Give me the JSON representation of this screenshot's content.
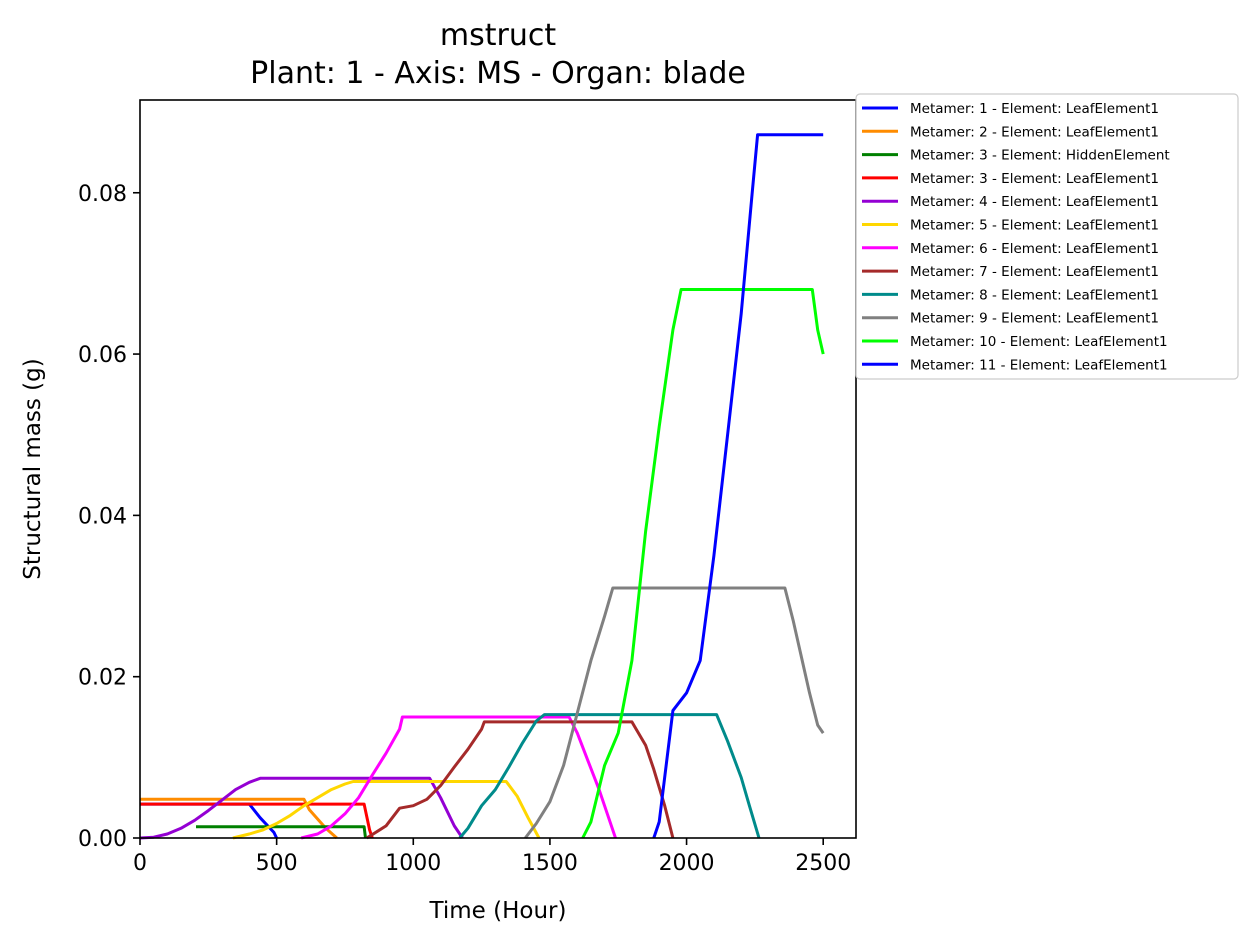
{
  "chart_data": {
    "type": "line",
    "title": "mstruct",
    "subtitle": "Plant: 1 - Axis: MS - Organ: blade",
    "xlabel": "Time (Hour)",
    "ylabel": "Structural mass (g)",
    "xlim": [
      0,
      2620
    ],
    "ylim": [
      0,
      0.0915
    ],
    "xticks": [
      0,
      500,
      1000,
      1500,
      2000,
      2500
    ],
    "xtick_labels": [
      "0",
      "500",
      "1000",
      "1500",
      "2000",
      "2500"
    ],
    "yticks": [
      0,
      0.02,
      0.04,
      0.06,
      0.08
    ],
    "ytick_labels": [
      "0.00",
      "0.02",
      "0.04",
      "0.06",
      "0.08"
    ],
    "grid": false,
    "legend_position": "outside-top-right",
    "series": [
      {
        "name": "Metamer: 1 - Element: LeafElement1",
        "color": "#0000ff",
        "x": [
          0,
          400,
          440,
          490,
          500
        ],
        "y": [
          0.0042,
          0.0042,
          0.0025,
          0.0007,
          0.0
        ]
      },
      {
        "name": "Metamer: 2 - Element: LeafElement1",
        "color": "#ff8c00",
        "x": [
          0,
          600,
          620,
          680,
          720
        ],
        "y": [
          0.0048,
          0.0048,
          0.0035,
          0.0012,
          0.0
        ]
      },
      {
        "name": "Metamer: 3 - Element: HiddenElement",
        "color": "#008000",
        "x": [
          205,
          820,
          825
        ],
        "y": [
          0.0014,
          0.0014,
          0.0
        ]
      },
      {
        "name": "Metamer: 3 - Element: LeafElement1",
        "color": "#ff0000",
        "x": [
          0,
          820,
          840,
          850
        ],
        "y": [
          0.0042,
          0.0042,
          0.001,
          0.0
        ]
      },
      {
        "name": "Metamer: 4 - Element: LeafElement1",
        "color": "#9400d3",
        "x": [
          0,
          50,
          100,
          150,
          200,
          250,
          300,
          350,
          400,
          440,
          500,
          1000,
          1060,
          1100,
          1150,
          1180
        ],
        "y": [
          0,
          0.0001,
          0.0005,
          0.0012,
          0.0022,
          0.0034,
          0.0047,
          0.006,
          0.0069,
          0.0074,
          0.0074,
          0.0074,
          0.0074,
          0.005,
          0.0015,
          0.0
        ]
      },
      {
        "name": "Metamer: 5 - Element: LeafElement1",
        "color": "#ffd700",
        "x": [
          340,
          400,
          450,
          500,
          550,
          600,
          650,
          700,
          750,
          780,
          1000,
          1340,
          1380,
          1420,
          1460
        ],
        "y": [
          0.0,
          0.0005,
          0.001,
          0.0018,
          0.0028,
          0.004,
          0.005,
          0.006,
          0.0067,
          0.007,
          0.007,
          0.007,
          0.0052,
          0.0025,
          0.0
        ]
      },
      {
        "name": "Metamer: 6 - Element: LeafElement1",
        "color": "#ff00ff",
        "x": [
          590,
          650,
          700,
          750,
          800,
          850,
          900,
          950,
          960,
          1200,
          1570,
          1600,
          1640,
          1680,
          1710,
          1740
        ],
        "y": [
          0.0,
          0.0005,
          0.0015,
          0.003,
          0.005,
          0.0078,
          0.0105,
          0.0135,
          0.015,
          0.015,
          0.015,
          0.013,
          0.0095,
          0.006,
          0.003,
          0.0
        ]
      },
      {
        "name": "Metamer: 7 - Element: LeafElement1",
        "color": "#a52a2a",
        "x": [
          830,
          900,
          950,
          1000,
          1050,
          1100,
          1150,
          1200,
          1250,
          1260,
          1500,
          1800,
          1850,
          1880,
          1920,
          1950
        ],
        "y": [
          0.0,
          0.0015,
          0.0037,
          0.004,
          0.0048,
          0.0065,
          0.0088,
          0.011,
          0.0135,
          0.0144,
          0.0144,
          0.0144,
          0.0115,
          0.0085,
          0.004,
          0.0
        ]
      },
      {
        "name": "Metamer: 8 - Element: LeafElement1",
        "color": "#008b8b",
        "x": [
          1170,
          1200,
          1250,
          1300,
          1350,
          1400,
          1450,
          1480,
          1700,
          2110,
          2150,
          2200,
          2230,
          2265
        ],
        "y": [
          0.0,
          0.0012,
          0.004,
          0.006,
          0.0088,
          0.0118,
          0.0145,
          0.0153,
          0.0153,
          0.0153,
          0.012,
          0.0075,
          0.004,
          0.0
        ]
      },
      {
        "name": "Metamer: 9 - Element: LeafElement1",
        "color": "#808080",
        "x": [
          1410,
          1450,
          1500,
          1550,
          1600,
          1650,
          1700,
          1730,
          2000,
          2360,
          2390,
          2420,
          2450,
          2480,
          2500
        ],
        "y": [
          0.0,
          0.0018,
          0.0045,
          0.009,
          0.0155,
          0.022,
          0.0275,
          0.031,
          0.031,
          0.031,
          0.027,
          0.0225,
          0.018,
          0.014,
          0.013
        ]
      },
      {
        "name": "Metamer: 10 - Element: LeafElement1",
        "color": "#00ff00",
        "x": [
          1620,
          1650,
          1700,
          1750,
          1800,
          1850,
          1900,
          1950,
          1980,
          2200,
          2460,
          2480,
          2500
        ],
        "y": [
          0.0,
          0.002,
          0.009,
          0.013,
          0.022,
          0.038,
          0.051,
          0.063,
          0.068,
          0.068,
          0.068,
          0.063,
          0.06
        ]
      },
      {
        "name": "Metamer: 11 - Element: LeafElement1",
        "color": "#0000ff",
        "x": [
          1880,
          1900,
          1950,
          2000,
          2050,
          2100,
          2150,
          2200,
          2240,
          2260,
          2400,
          2500
        ],
        "y": [
          0.0,
          0.002,
          0.0158,
          0.018,
          0.022,
          0.035,
          0.05,
          0.065,
          0.08,
          0.0872,
          0.0872,
          0.0872
        ]
      }
    ]
  }
}
